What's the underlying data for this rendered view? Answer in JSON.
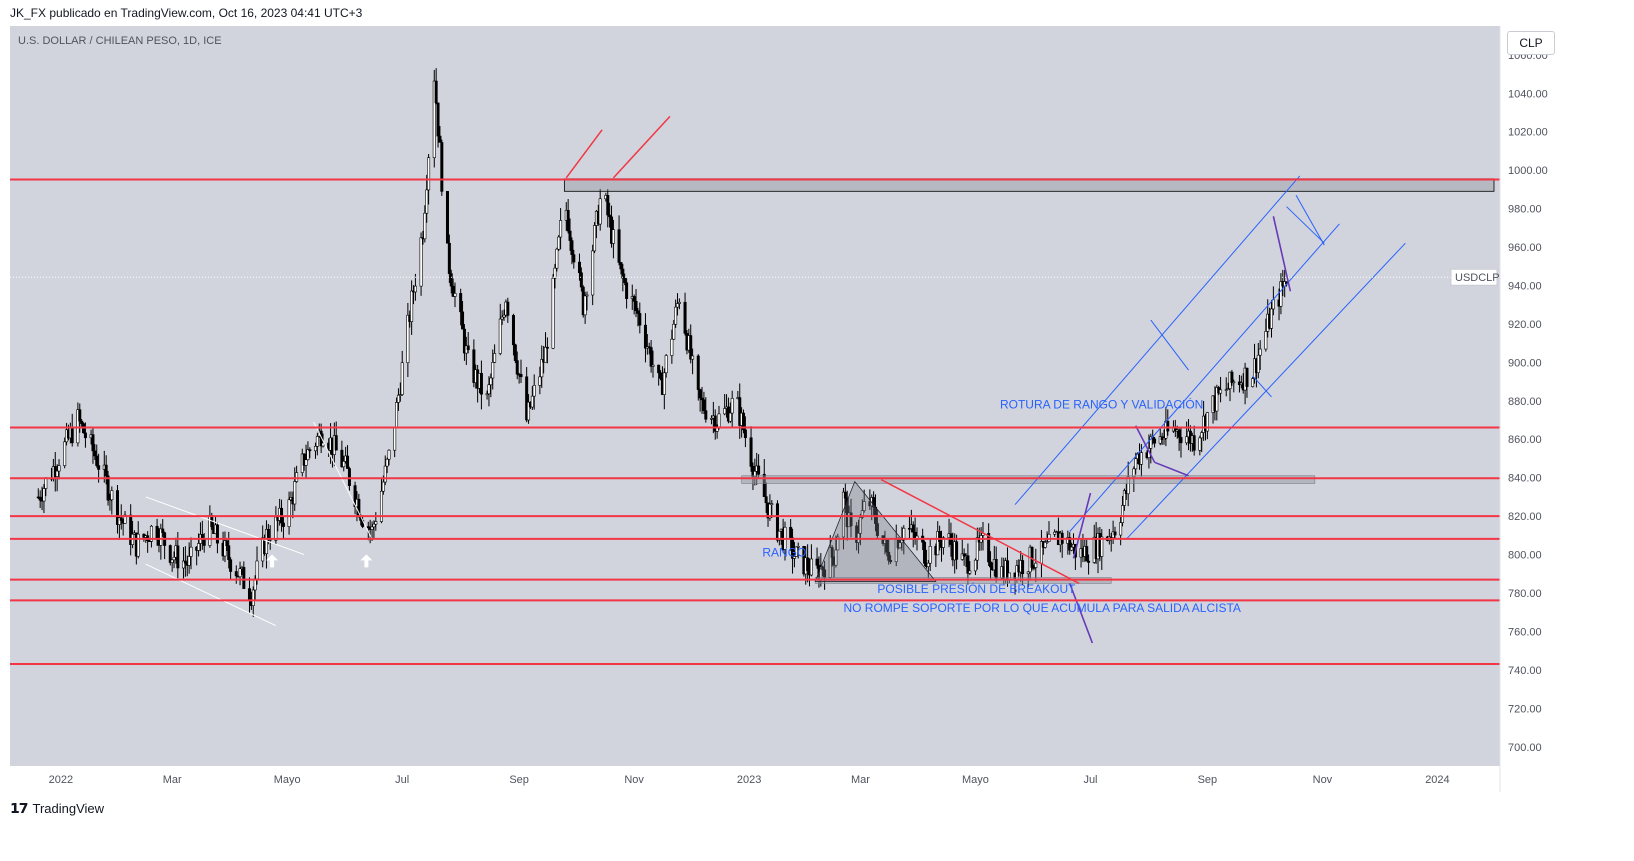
{
  "header": {
    "publisher": "JK_FX publicado en TradingView.com, Oct 16, 2023 04:41 UTC+3"
  },
  "currency_button": "CLP",
  "footer": {
    "brand": "TradingView"
  },
  "colors": {
    "plot_bg": "#d1d4dc",
    "candle": "#000000",
    "level_line": "#f23645",
    "channel": "#2962ff",
    "annotation": "#2962ff",
    "purple": "#673ab7",
    "white_arrow": "#ffffff"
  },
  "chart_data": {
    "type": "candlestick",
    "title": "U.S. DOLLAR / CHILEAN PESO, 1D, ICE",
    "symbol": "USDCLP",
    "last_price": "944.29",
    "x_ticks": [
      "2022",
      "Mar",
      "Mayo",
      "Jul",
      "Sep",
      "Nov",
      "2023",
      "Mar",
      "Mayo",
      "Jul",
      "Sep",
      "Nov",
      "2024"
    ],
    "y_ticks": [
      "700.00",
      "720.00",
      "740.00",
      "760.00",
      "780.00",
      "800.00",
      "820.00",
      "840.00",
      "860.00",
      "880.00",
      "900.00",
      "920.00",
      "940.00",
      "960.00",
      "980.00",
      "1000.00",
      "1020.00",
      "1040.00",
      "1060.00"
    ],
    "ylim": [
      690,
      1075
    ],
    "horizontal_levels": [
      "995.16",
      "866.10",
      "839.71",
      "820.01",
      "808.14",
      "786.99",
      "776.18",
      "743.07"
    ],
    "close_path": [
      [
        "2021-12-20",
        830
      ],
      [
        "2021-12-28",
        845
      ],
      [
        "2022-01-05",
        860
      ],
      [
        "2022-01-10",
        870
      ],
      [
        "2022-01-20",
        850
      ],
      [
        "2022-02-01",
        820
      ],
      [
        "2022-02-10",
        805
      ],
      [
        "2022-02-20",
        815
      ],
      [
        "2022-03-01",
        800
      ],
      [
        "2022-03-10",
        795
      ],
      [
        "2022-03-20",
        815
      ],
      [
        "2022-04-01",
        797
      ],
      [
        "2022-04-12",
        780
      ],
      [
        "2022-04-20",
        810
      ],
      [
        "2022-05-01",
        822
      ],
      [
        "2022-05-10",
        850
      ],
      [
        "2022-05-20",
        865
      ],
      [
        "2022-06-01",
        845
      ],
      [
        "2022-06-10",
        820
      ],
      [
        "2022-06-15",
        812
      ],
      [
        "2022-06-25",
        855
      ],
      [
        "2022-07-05",
        925
      ],
      [
        "2022-07-12",
        970
      ],
      [
        "2022-07-18",
        1050
      ],
      [
        "2022-07-25",
        955
      ],
      [
        "2022-08-05",
        900
      ],
      [
        "2022-08-15",
        880
      ],
      [
        "2022-08-25",
        935
      ],
      [
        "2022-09-05",
        870
      ],
      [
        "2022-09-15",
        905
      ],
      [
        "2022-09-25",
        985
      ],
      [
        "2022-10-05",
        930
      ],
      [
        "2022-10-15",
        990
      ],
      [
        "2022-10-25",
        945
      ],
      [
        "2022-11-05",
        920
      ],
      [
        "2022-11-15",
        885
      ],
      [
        "2022-11-25",
        935
      ],
      [
        "2022-12-05",
        880
      ],
      [
        "2022-12-15",
        870
      ],
      [
        "2022-12-25",
        880
      ],
      [
        "2023-01-05",
        840
      ],
      [
        "2023-01-15",
        815
      ],
      [
        "2023-01-25",
        800
      ],
      [
        "2023-02-05",
        790
      ],
      [
        "2023-02-15",
        800
      ],
      [
        "2023-02-20",
        830
      ],
      [
        "2023-02-25",
        805
      ],
      [
        "2023-03-05",
        830
      ],
      [
        "2023-03-15",
        800
      ],
      [
        "2023-03-25",
        815
      ],
      [
        "2023-04-05",
        800
      ],
      [
        "2023-04-15",
        810
      ],
      [
        "2023-04-25",
        795
      ],
      [
        "2023-05-05",
        805
      ],
      [
        "2023-05-15",
        790
      ],
      [
        "2023-05-25",
        795
      ],
      [
        "2023-06-05",
        800
      ],
      [
        "2023-06-15",
        810
      ],
      [
        "2023-06-25",
        800
      ],
      [
        "2023-07-05",
        805
      ],
      [
        "2023-07-15",
        815
      ],
      [
        "2023-07-25",
        850
      ],
      [
        "2023-08-05",
        860
      ],
      [
        "2023-08-15",
        865
      ],
      [
        "2023-08-25",
        860
      ],
      [
        "2023-09-05",
        880
      ],
      [
        "2023-09-15",
        890
      ],
      [
        "2023-09-25",
        895
      ],
      [
        "2023-10-05",
        925
      ],
      [
        "2023-10-13",
        944
      ]
    ],
    "annotations": [
      {
        "text": "RANGO",
        "date": "2023-01-08",
        "price": 799
      },
      {
        "text": "POSIBLE PRESIÓN DE BREAKOUT",
        "date": "2023-03-10",
        "price": 780
      },
      {
        "text": "NO ROMPE SOPORTE POR LO QUE ACUMULA PARA SALIDA ALCISTA",
        "date": "2023-02-20",
        "price": 770
      },
      {
        "text": "ROTURA DE RANGO Y VALIDACIÓN",
        "date": "2023-05-14",
        "price": 876
      }
    ]
  }
}
